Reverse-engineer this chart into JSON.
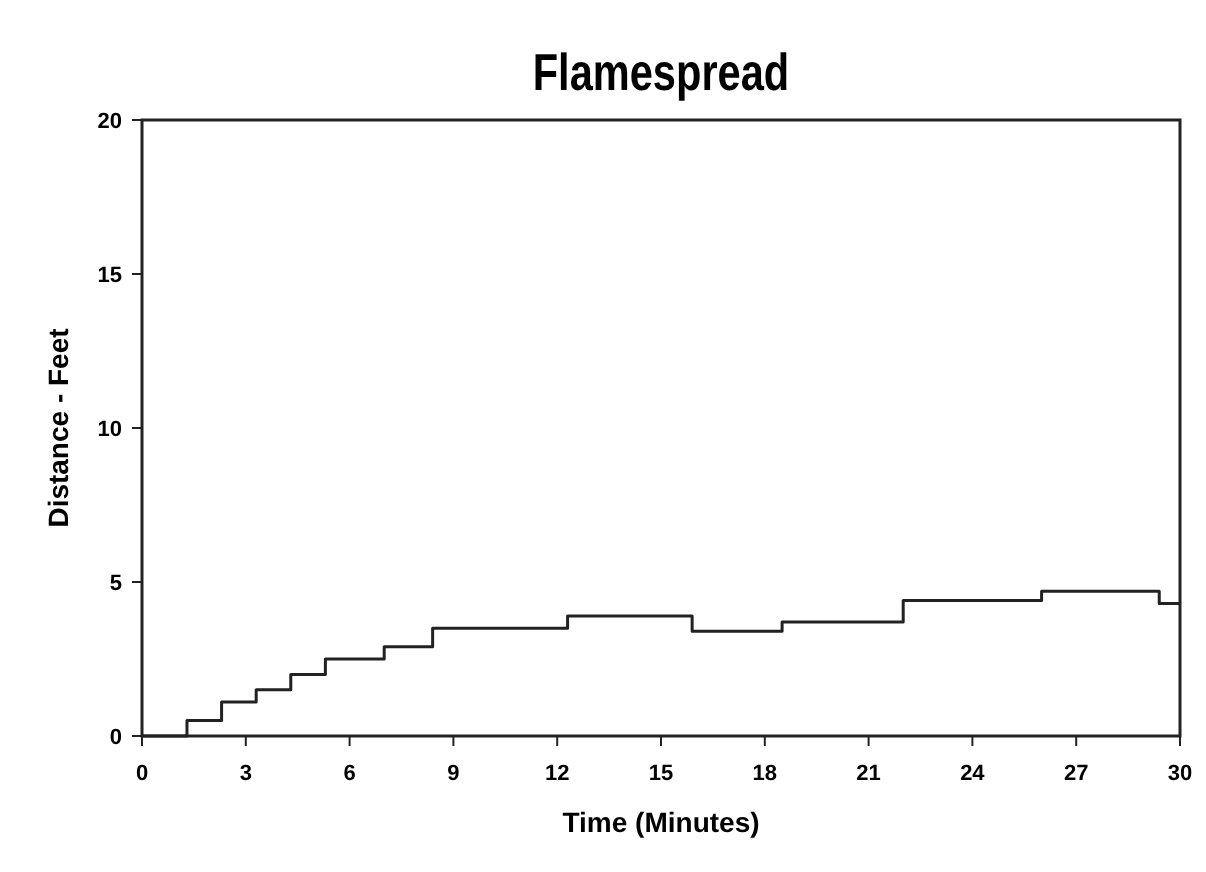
{
  "chart_data": {
    "type": "step",
    "title": "Flamespread",
    "xlabel": "Time (Minutes)",
    "ylabel": "Distance - Feet",
    "x": [
      0,
      1.3,
      2.3,
      3.3,
      4.3,
      5.3,
      7.0,
      8.4,
      12.3,
      15.9,
      18.5,
      22.0,
      26.0,
      29.4,
      30
    ],
    "series": [
      {
        "color": "#222222",
        "values": [
          0,
          0.5,
          1.1,
          1.5,
          2.0,
          2.5,
          2.9,
          3.5,
          3.9,
          3.4,
          3.7,
          4.4,
          4.7,
          4.3,
          4.3
        ]
      }
    ],
    "xlim": [
      0,
      30
    ],
    "xticks": [
      0,
      3,
      6,
      9,
      12,
      15,
      18,
      21,
      24,
      27,
      30
    ],
    "ylim": [
      0,
      20
    ],
    "yticks": [
      0,
      5,
      10,
      15,
      20
    ],
    "grid": false,
    "marker": "none",
    "line_style": "solid"
  }
}
